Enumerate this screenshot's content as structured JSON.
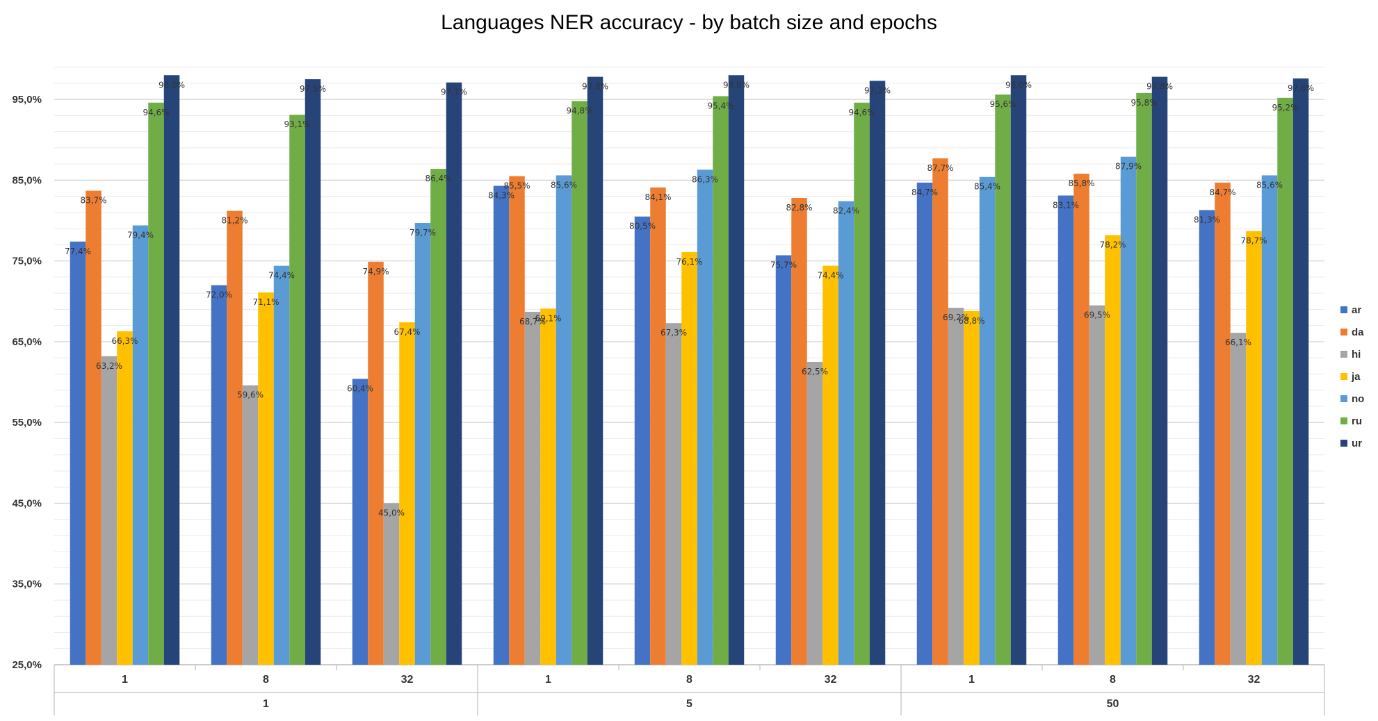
{
  "chart_data": {
    "type": "bar",
    "title": "Languages NER accuracy - by batch size and epochs",
    "xlabel": "",
    "ylabel": "",
    "ylim": [
      25,
      100
    ],
    "y_ticks": [
      "25,0%",
      "35,0%",
      "45,0%",
      "55,0%",
      "65,0%",
      "75,0%",
      "85,0%",
      "95,0%"
    ],
    "grid": true,
    "legend_position": "right",
    "categories": [
      "1",
      "8",
      "32",
      "1",
      "8",
      "32",
      "1",
      "8",
      "32"
    ],
    "category_groups": [
      {
        "label": "1",
        "span": 3
      },
      {
        "label": "5",
        "span": 3
      },
      {
        "label": "50",
        "span": 3
      }
    ],
    "series": [
      {
        "name": "ar",
        "color": "#4472C4",
        "values": [
          77.4,
          72.0,
          60.4,
          84.3,
          80.5,
          75.7,
          84.7,
          83.1,
          81.3
        ],
        "labels": [
          "77,4%",
          "72,0%",
          "60,4%",
          "84,3%",
          "80,5%",
          "75,7%",
          "84,7%",
          "83,1%",
          "81,3%"
        ]
      },
      {
        "name": "da",
        "color": "#ED7D31",
        "values": [
          83.7,
          81.2,
          74.9,
          85.5,
          84.1,
          82.8,
          87.7,
          85.8,
          84.7
        ],
        "labels": [
          "83,7%",
          "81,2%",
          "74,9%",
          "85,5%",
          "84,1%",
          "82,8%",
          "87,7%",
          "85,8%",
          "84,7%"
        ]
      },
      {
        "name": "hi",
        "color": "#A5A5A5",
        "values": [
          63.2,
          59.6,
          45.0,
          68.7,
          67.3,
          62.5,
          69.2,
          69.5,
          66.1
        ],
        "labels": [
          "63,2%",
          "59,6%",
          "45,0%",
          "68,7%",
          "67,3%",
          "62,5%",
          "69,2%",
          "69,5%",
          "66,1%"
        ]
      },
      {
        "name": "ja",
        "color": "#FFC000",
        "values": [
          66.3,
          71.1,
          67.4,
          69.1,
          76.1,
          74.4,
          68.8,
          78.2,
          78.7
        ],
        "labels": [
          "66,3%",
          "71,1%",
          "67,4%",
          "69,1%",
          "76,1%",
          "74,4%",
          "68,8%",
          "78,2%",
          "78,7%"
        ]
      },
      {
        "name": "no",
        "color": "#5B9BD5",
        "values": [
          79.4,
          74.4,
          79.7,
          85.6,
          86.3,
          82.4,
          85.4,
          87.9,
          85.6
        ],
        "labels": [
          "79,4%",
          "74,4%",
          "79,7%",
          "85,6%",
          "86,3%",
          "82,4%",
          "85,4%",
          "87,9%",
          "85,6%"
        ]
      },
      {
        "name": "ru",
        "color": "#70AD47",
        "values": [
          94.6,
          93.1,
          86.4,
          94.8,
          95.4,
          94.6,
          95.6,
          95.8,
          95.2
        ],
        "labels": [
          "94,6%",
          "93,1%",
          "86,4%",
          "94,8%",
          "95,4%",
          "94,6%",
          "95,6%",
          "95,8%",
          "95,2%"
        ]
      },
      {
        "name": "ur",
        "color": "#264478",
        "values": [
          98.0,
          97.5,
          97.1,
          97.8,
          98.0,
          97.3,
          98.0,
          97.8,
          97.6
        ],
        "labels": [
          "98,0%",
          "97,5%",
          "97,1%",
          "97,8%",
          "98,0%",
          "97,3%",
          "98,0%",
          "97,8%",
          "97,6%"
        ]
      }
    ]
  }
}
